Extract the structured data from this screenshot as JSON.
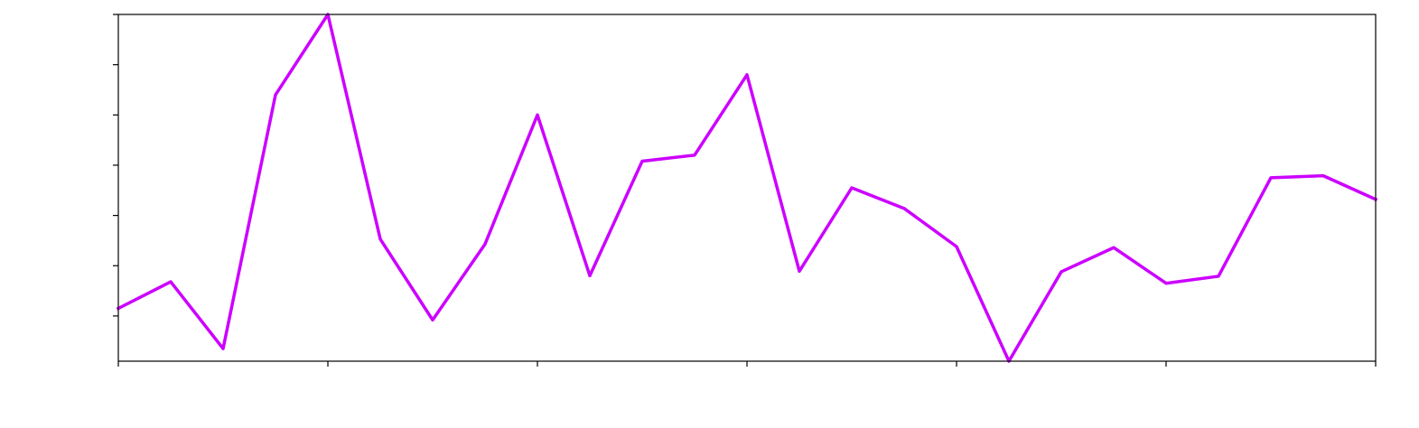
{
  "chart_data": {
    "type": "line",
    "title": "",
    "xlabel": "",
    "ylabel": "",
    "xlim": [
      0,
      24
    ],
    "ylim": [
      0,
      6.9
    ],
    "grid": false,
    "x_tick_values": [
      0,
      4,
      8,
      12,
      16,
      20,
      24
    ],
    "y_tick_values": [
      0.9,
      1.9,
      2.9,
      3.9,
      4.9,
      5.9,
      6.9
    ],
    "x": [
      0,
      1,
      2,
      3,
      4,
      5,
      6,
      7,
      8,
      9,
      10,
      11,
      12,
      13,
      14,
      15,
      16,
      17,
      18,
      19,
      20,
      21,
      22,
      23,
      24
    ],
    "series": [
      {
        "name": "",
        "color": "#cc00ff",
        "values": [
          1.05,
          1.58,
          0.25,
          5.3,
          6.9,
          2.43,
          0.82,
          2.33,
          4.9,
          1.7,
          3.98,
          4.1,
          5.7,
          1.79,
          3.45,
          3.04,
          2.28,
          0.0,
          1.78,
          2.26,
          1.55,
          1.69,
          3.65,
          3.69,
          3.22
        ]
      }
    ]
  }
}
